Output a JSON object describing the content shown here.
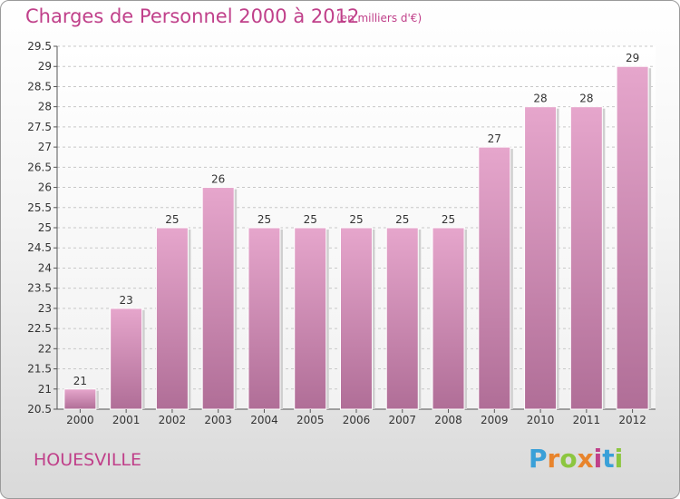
{
  "chart_data": {
    "type": "bar",
    "title": "Charges de Personnel 2000 à 2012",
    "subtitle": "(en milliers d'€)",
    "categories": [
      "2000",
      "2001",
      "2002",
      "2003",
      "2004",
      "2005",
      "2006",
      "2007",
      "2008",
      "2009",
      "2010",
      "2011",
      "2012"
    ],
    "values": [
      21,
      23,
      25,
      26,
      25,
      25,
      25,
      25,
      25,
      27,
      28,
      28,
      29
    ],
    "ylim": [
      20.5,
      29.5
    ],
    "yticks": [
      20.5,
      21,
      21.5,
      22,
      22.5,
      23,
      23.5,
      24,
      24.5,
      25,
      25.5,
      26,
      26.5,
      27,
      27.5,
      28,
      28.5,
      29,
      29.5
    ],
    "grid": true,
    "bar_color": "#d88bb8",
    "xlabel": "",
    "ylabel": ""
  },
  "commune": "HOUESVILLE",
  "logo": {
    "letters": [
      "P",
      "r",
      "o",
      "x",
      "i",
      "t",
      "i"
    ],
    "colors": [
      "#3aa0d8",
      "#e8842c",
      "#8cc63f",
      "#e8842c",
      "#c0408a",
      "#3aa0d8",
      "#8cc63f"
    ]
  }
}
